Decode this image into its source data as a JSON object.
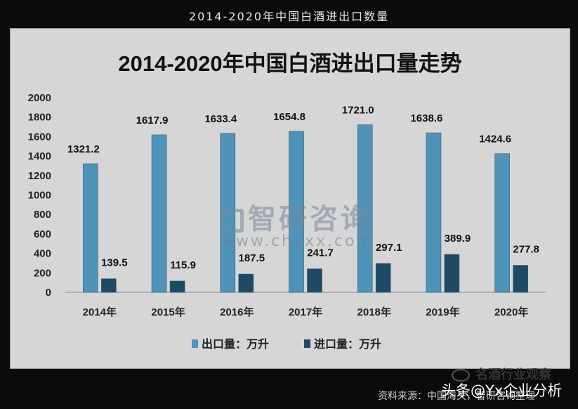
{
  "page": {
    "header_title": "2014-2020年中国白酒进出口数量",
    "watermark_brand": "智研咨询",
    "watermark_url": "www.chyxx.com",
    "wechat_label": "名酒行业观察",
    "source_label": "资料来源：中国海关，智研咨询整理",
    "platform_label": "头条@Yx企业分析"
  },
  "chart_data": {
    "type": "bar",
    "title": "2014-2020年中国白酒进出口量走势",
    "categories": [
      "2014年",
      "2015年",
      "2016年",
      "2017年",
      "2018年",
      "2019年",
      "2020年"
    ],
    "series": [
      {
        "name": "出口量：万升",
        "color": "#4f93b8",
        "values": [
          1321.2,
          1617.9,
          1633.4,
          1654.8,
          1721.0,
          1638.6,
          1424.6
        ],
        "labels": [
          "1321.2",
          "1617.9",
          "1633.4",
          "1654.8",
          "1721.0",
          "1638.6",
          "1424.6"
        ]
      },
      {
        "name": "进口量：万升",
        "color": "#1f4a66",
        "values": [
          139.5,
          115.9,
          187.5,
          241.7,
          297.1,
          389.9,
          277.8
        ],
        "labels": [
          "139.5",
          "115.9",
          "187.5",
          "241.7",
          "297.1",
          "389.9",
          "277.8"
        ]
      }
    ],
    "yticks": [
      "0",
      "200",
      "400",
      "600",
      "800",
      "1000",
      "1200",
      "1400",
      "1600",
      "1800",
      "2000"
    ],
    "ylim": [
      0,
      2000
    ],
    "grid": false,
    "legend_position": "bottom"
  }
}
